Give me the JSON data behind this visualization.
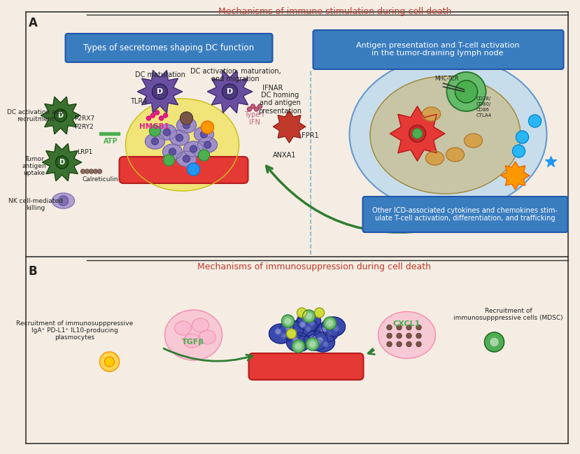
{
  "background_color": "#f5ede3",
  "title_A": "Mechanisms of immune stimulation during cell death",
  "title_B": "Mechanisms of immunosuppression during cell death",
  "title_color": "#c0392b",
  "panel_A_label": "A",
  "panel_B_label": "B",
  "box1_text": "Types of secretomes shaping DC function",
  "box2_text": "Antigen presentation and T-cell activation\nin the tumor-draining lymph node",
  "box3_text": "Other ICD-associated cytokines and chemokines stim-\nulate T-cell activation, differentiation, and trafficking",
  "box_bg": "#3a7dbf",
  "label_dc_maturation": "DC maturation",
  "label_dc_activation": "DC activation, maturation,\nand migration",
  "label_dc_recruitment": "DC activation and\nrecruitment",
  "label_tumor_antigen": "Tumor\nantigen\nuptake",
  "label_nk": "NK cell-mediated\nkilling",
  "label_tlr4": "TLR4",
  "label_hmgb1": "HMGB1",
  "label_p2rx7": "P2RX7",
  "label_p2ry2": "P2RY2",
  "label_atp": "ATP",
  "label_lrp1": "LRP1",
  "label_calreticulin": "Calreticulin",
  "label_ifnar": "IFNAR",
  "label_type1_ifn": "Type I\nIFN",
  "label_dc_homing": "DC homing\nand antigen\npresentation",
  "label_fpr1": "FPR1",
  "label_anxa1": "ANXA1",
  "label_mhc_tcr": "MHC-TCR",
  "label_tgfb": "TGFβ",
  "label_cxcl1": "CXCL1",
  "label_recruit_immuno": "Recruitment of immunosupppressive\nIgA⁺ PD-L1⁺ IL10-producing\nplasmocytes",
  "label_recruit_mdsc": "Recruitment of\nimmunosupppressive cells (MDSC)",
  "arrow_color": "#2e7d32",
  "dashed_line_color": "#7fb3d3"
}
